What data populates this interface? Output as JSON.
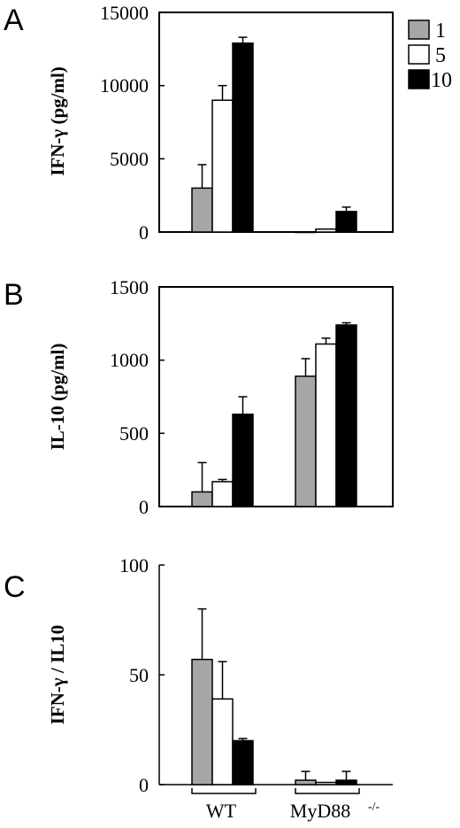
{
  "chart_data": [
    {
      "type": "bar",
      "panel": "A",
      "ylabel": "IFN-γ (pg/ml)",
      "ylim": [
        0,
        15000
      ],
      "yticks": [
        "0",
        "5000",
        "10000",
        "15000"
      ],
      "categories": [
        "WT",
        "MyD88 -/-"
      ],
      "series": [
        {
          "name": "1",
          "values": [
            3000,
            0
          ],
          "errors": [
            1600,
            0
          ]
        },
        {
          "name": "5",
          "values": [
            9000,
            200
          ],
          "errors": [
            1000,
            0
          ]
        },
        {
          "name": "10",
          "values": [
            12900,
            1400
          ],
          "errors": [
            400,
            300
          ]
        }
      ]
    },
    {
      "type": "bar",
      "panel": "B",
      "ylabel": "IL-10 (pg/ml)",
      "ylim": [
        0,
        1500
      ],
      "yticks": [
        "0",
        "500",
        "1000",
        "1500"
      ],
      "categories": [
        "WT",
        "MyD88 -/-"
      ],
      "series": [
        {
          "name": "1",
          "values": [
            100,
            890
          ],
          "errors": [
            200,
            120
          ]
        },
        {
          "name": "5",
          "values": [
            170,
            1110
          ],
          "errors": [
            15,
            40
          ]
        },
        {
          "name": "10",
          "values": [
            630,
            1240
          ],
          "errors": [
            120,
            15
          ]
        }
      ]
    },
    {
      "type": "bar",
      "panel": "C",
      "ylabel": "IFN-γ / IL10",
      "ylim": [
        0,
        100
      ],
      "yticks": [
        "0",
        "50",
        "100"
      ],
      "categories": [
        "WT",
        "MyD88 -/-"
      ],
      "series": [
        {
          "name": "1",
          "values": [
            57,
            2
          ],
          "errors": [
            23,
            4
          ]
        },
        {
          "name": "5",
          "values": [
            39,
            1
          ],
          "errors": [
            17,
            0
          ]
        },
        {
          "name": "10",
          "values": [
            20,
            2
          ],
          "errors": [
            1,
            4
          ]
        }
      ]
    }
  ],
  "legend": {
    "position": "top-right",
    "entries": [
      "1",
      "5",
      "10"
    ]
  },
  "colors": {
    "series_1": "#a6a6a6",
    "series_5": "#ffffff",
    "series_10": "#000000"
  },
  "x_groups": {
    "wt": "WT",
    "myd88": "MyD88",
    "myd88_sup": "-/-"
  }
}
